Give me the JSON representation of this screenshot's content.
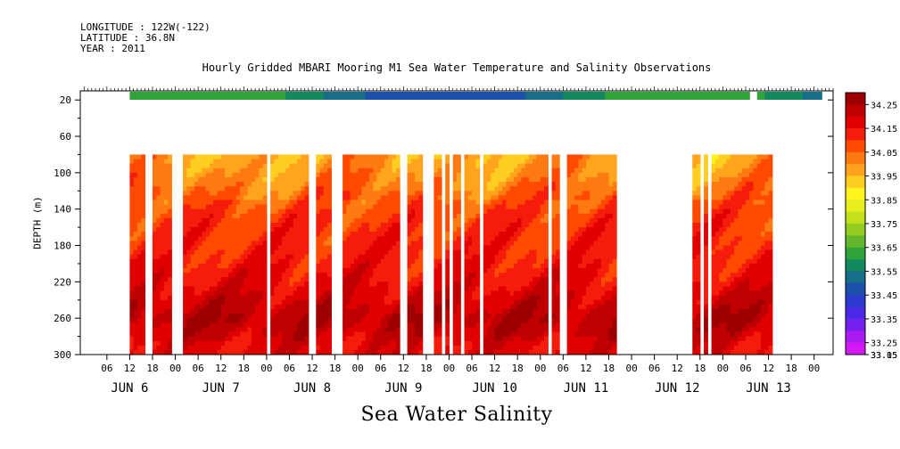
{
  "header": {
    "longitude": "LONGITUDE : 122W(-122)",
    "latitude": "LATITUDE : 36.8N",
    "year": "YEAR : 2011"
  },
  "title": "Hourly Gridded MBARI Mooring M1 Sea Water Temperature and Salinity Observations",
  "bottom_title": "Sea Water Salinity",
  "chart_data": {
    "type": "heatmap",
    "title": "Hourly Gridded MBARI Mooring M1 Sea Water Temperature and Salinity Observations",
    "xlabel": "",
    "ylabel": "DEPTH (m)",
    "variable": "Sea Water Salinity",
    "x_ticks": [
      "06",
      "12",
      "18",
      "00",
      "06",
      "12",
      "18",
      "00",
      "06",
      "12",
      "18",
      "00",
      "06",
      "12",
      "18",
      "00",
      "06",
      "12",
      "18",
      "00",
      "06",
      "12",
      "18",
      "00",
      "06",
      "12",
      "18",
      "00",
      "06",
      "12",
      "18",
      "00"
    ],
    "day_labels": [
      "JUN  6",
      "JUN  7",
      "JUN  8",
      "JUN  9",
      "JUN 10",
      "JUN 11",
      "JUN 12",
      "JUN 13"
    ],
    "y_ticks": [
      20,
      60,
      100,
      140,
      180,
      220,
      260,
      300
    ],
    "ylim": [
      300,
      20
    ],
    "colorbar": {
      "levels": [
        34.25,
        34.15,
        34.05,
        33.95,
        33.85,
        33.75,
        33.65,
        33.55,
        33.45,
        33.35,
        33.25,
        33.15,
        33.05
      ],
      "colors": [
        "#9c0000",
        "#bf0000",
        "#e00000",
        "#f51c0c",
        "#ff4a00",
        "#ff7a10",
        "#ffa41c",
        "#ffce20",
        "#fff41e",
        "#e6ee1c",
        "#c4e01a",
        "#94cc22",
        "#62b82a",
        "#2ea43a",
        "#128a5e",
        "#166e88",
        "#1c50ac",
        "#2c3ad0",
        "#4a2ae6",
        "#7420ee",
        "#a81cf0",
        "#d41af4"
      ]
    },
    "surface_band": {
      "depth_m": 5,
      "value_range": [
        33.45,
        33.65
      ]
    },
    "data_depth_range_m": [
      80,
      300
    ],
    "profile_salinity_by_depth": [
      {
        "depth": 85,
        "value": 33.98
      },
      {
        "depth": 105,
        "value": 34.01
      },
      {
        "depth": 125,
        "value": 34.05
      },
      {
        "depth": 145,
        "value": 34.09
      },
      {
        "depth": 165,
        "value": 34.11
      },
      {
        "depth": 185,
        "value": 34.12
      },
      {
        "depth": 205,
        "value": 34.14
      },
      {
        "depth": 225,
        "value": 34.17
      },
      {
        "depth": 245,
        "value": 34.21
      },
      {
        "depth": 260,
        "value": 34.24
      },
      {
        "depth": 275,
        "value": 34.21
      },
      {
        "depth": 290,
        "value": 34.17
      }
    ],
    "missing_data_hours_from_jun6_00": [
      [
        0,
        12
      ],
      [
        16,
        18
      ],
      [
        23,
        26
      ],
      [
        48,
        49
      ],
      [
        59,
        61
      ],
      [
        65,
        68
      ],
      [
        83,
        85
      ],
      [
        89,
        92
      ],
      [
        94,
        95
      ],
      [
        96,
        97
      ],
      [
        99,
        100
      ],
      [
        104,
        105
      ],
      [
        122,
        123
      ],
      [
        125,
        127
      ],
      [
        140,
        160
      ],
      [
        162,
        163
      ],
      [
        164,
        165
      ],
      [
        181,
        199
      ]
    ],
    "grid": false,
    "legend": "right"
  }
}
